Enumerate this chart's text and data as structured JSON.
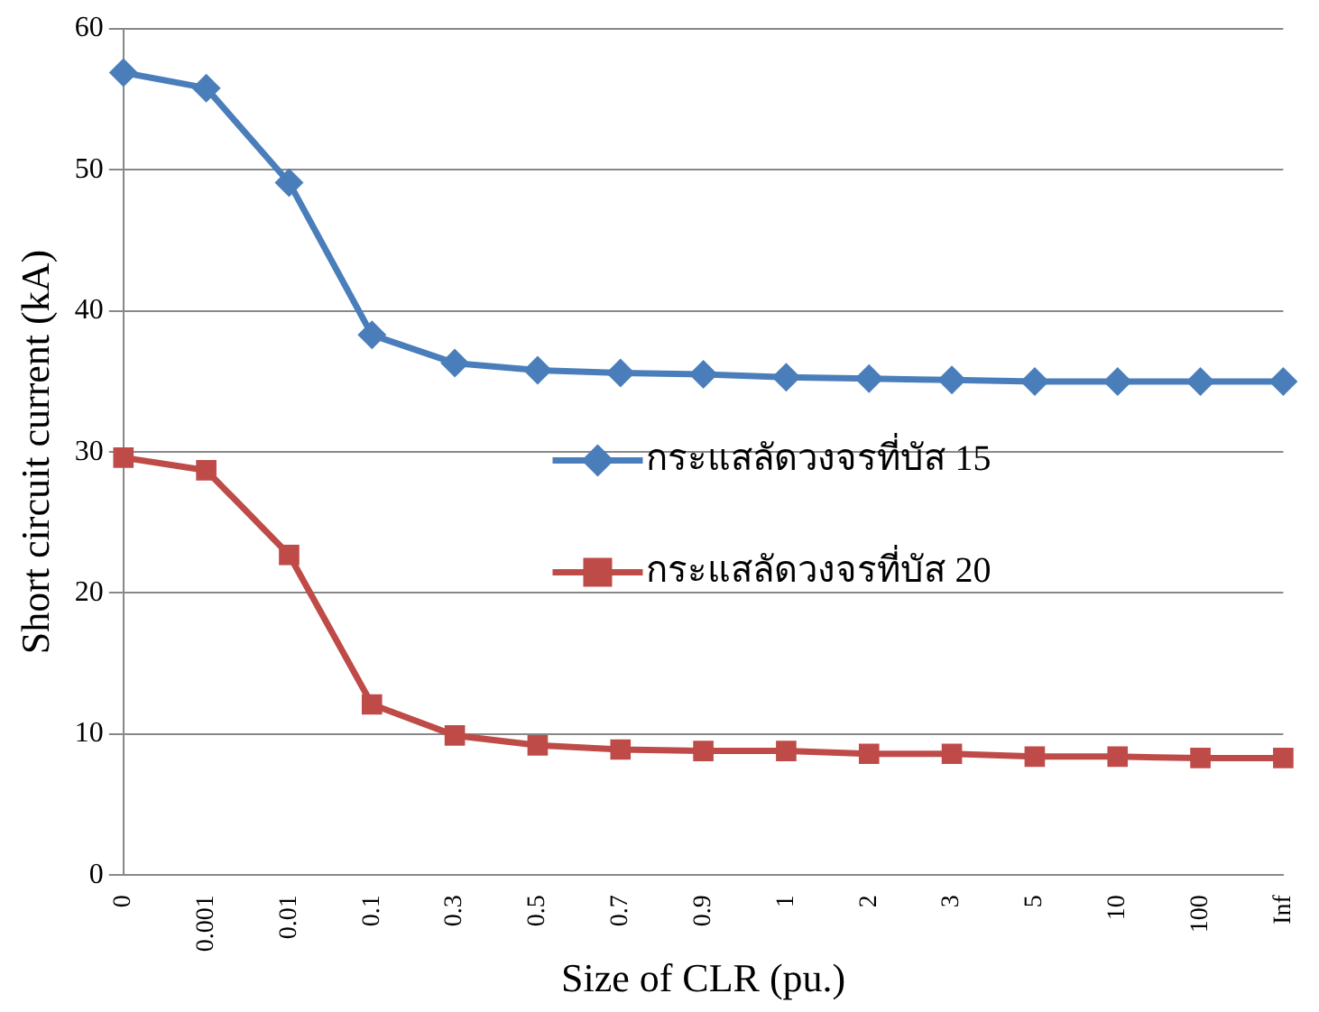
{
  "chart_data": {
    "type": "line",
    "xlabel": "Size of CLR (pu.)",
    "ylabel": "Short circuit current (kA)",
    "categories": [
      "0",
      "0.001",
      "0.01",
      "0.1",
      "0.3",
      "0.5",
      "0.7",
      "0.9",
      "1",
      "2",
      "3",
      "5",
      "10",
      "100",
      "Inf"
    ],
    "series": [
      {
        "name": "กระแสลัดวงจรที่บัส 15",
        "color": "#4a7ebb",
        "marker": "diamond",
        "values": [
          56.9,
          55.8,
          49.1,
          38.3,
          36.3,
          35.8,
          35.6,
          35.5,
          35.3,
          35.2,
          35.1,
          35.0,
          35.0,
          35.0,
          35.0
        ]
      },
      {
        "name": "กระแสลัดวงจรที่บัส 20",
        "color": "#be4b48",
        "marker": "square",
        "values": [
          29.6,
          28.7,
          22.7,
          12.1,
          9.9,
          9.2,
          8.9,
          8.8,
          8.8,
          8.6,
          8.6,
          8.4,
          8.4,
          8.3,
          8.3
        ]
      }
    ],
    "ylim": [
      0,
      60
    ],
    "yticks": [
      0,
      10,
      20,
      30,
      40,
      50,
      60
    ],
    "grid": "y",
    "legend": "center"
  }
}
